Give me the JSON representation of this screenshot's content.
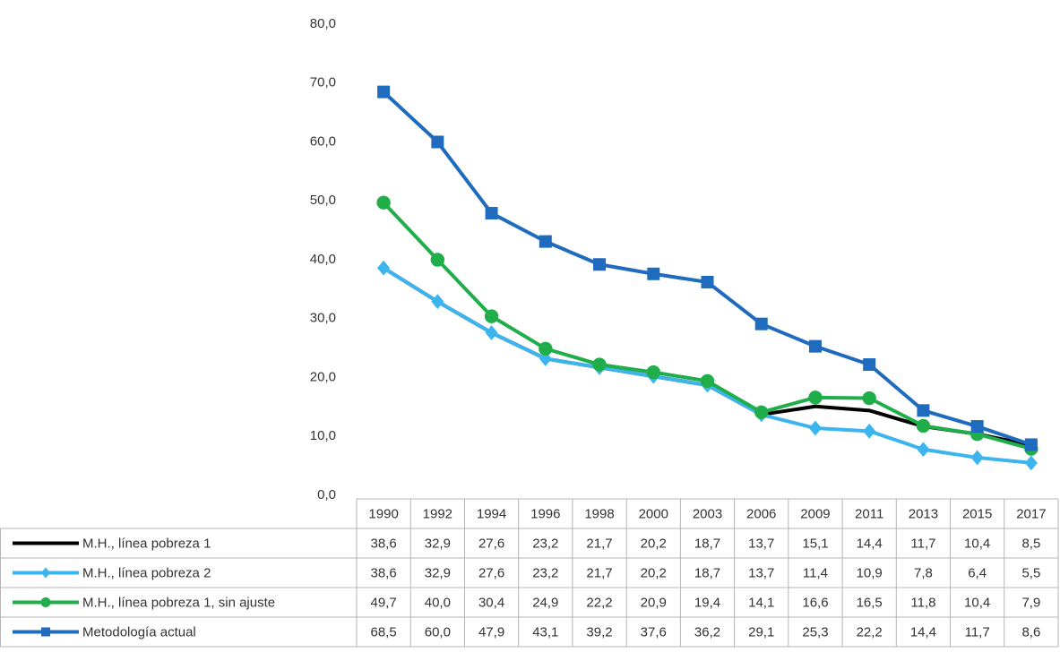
{
  "chart_data": {
    "type": "line",
    "categories": [
      "1990",
      "1992",
      "1994",
      "1996",
      "1998",
      "2000",
      "2003",
      "2006",
      "2009",
      "2011",
      "2013",
      "2015",
      "2017"
    ],
    "ylim": [
      0,
      80
    ],
    "yticks": [
      {
        "value": 0,
        "label": "0,0"
      },
      {
        "value": 10,
        "label": "10,0"
      },
      {
        "value": 20,
        "label": "20,0"
      },
      {
        "value": 30,
        "label": "30,0"
      },
      {
        "value": 40,
        "label": "40,0"
      },
      {
        "value": 50,
        "label": "50,0"
      },
      {
        "value": 60,
        "label": "60,0"
      },
      {
        "value": 70,
        "label": "70,0"
      },
      {
        "value": 80,
        "label": "80,0"
      }
    ],
    "series": [
      {
        "name": "M.H., línea pobreza 1",
        "color": "#000000",
        "marker": "none",
        "values": [
          38.6,
          32.9,
          27.6,
          23.2,
          21.7,
          20.2,
          18.7,
          13.7,
          15.1,
          14.4,
          11.7,
          10.4,
          8.5
        ],
        "value_labels": [
          "38,6",
          "32,9",
          "27,6",
          "23,2",
          "21,7",
          "20,2",
          "18,7",
          "13,7",
          "15,1",
          "14,4",
          "11,7",
          "10,4",
          "8,5"
        ]
      },
      {
        "name": "M.H., línea pobreza 2",
        "color": "#3cb4ee",
        "marker": "diamond",
        "values": [
          38.6,
          32.9,
          27.6,
          23.2,
          21.7,
          20.2,
          18.7,
          13.7,
          11.4,
          10.9,
          7.8,
          6.4,
          5.5
        ],
        "value_labels": [
          "38,6",
          "32,9",
          "27,6",
          "23,2",
          "21,7",
          "20,2",
          "18,7",
          "13,7",
          "11,4",
          "10,9",
          "7,8",
          "6,4",
          "5,5"
        ]
      },
      {
        "name": "M.H., línea pobreza 1, sin ajuste",
        "color": "#1fae4a",
        "marker": "circle",
        "values": [
          49.7,
          40.0,
          30.4,
          24.9,
          22.2,
          20.9,
          19.4,
          14.1,
          16.6,
          16.5,
          11.8,
          10.4,
          7.9
        ],
        "value_labels": [
          "49,7",
          "40,0",
          "30,4",
          "24,9",
          "22,2",
          "20,9",
          "19,4",
          "14,1",
          "16,6",
          "16,5",
          "11,8",
          "10,4",
          "7,9"
        ]
      },
      {
        "name": "Metodología actual",
        "color": "#1f6bbd",
        "marker": "square",
        "values": [
          68.5,
          60.0,
          47.9,
          43.1,
          39.2,
          37.6,
          36.2,
          29.1,
          25.3,
          22.2,
          14.4,
          11.7,
          8.6
        ],
        "value_labels": [
          "68,5",
          "60,0",
          "47,9",
          "43,1",
          "39,2",
          "37,6",
          "36,2",
          "29,1",
          "25,3",
          "22,2",
          "14,4",
          "11,7",
          "8,6"
        ]
      }
    ]
  }
}
